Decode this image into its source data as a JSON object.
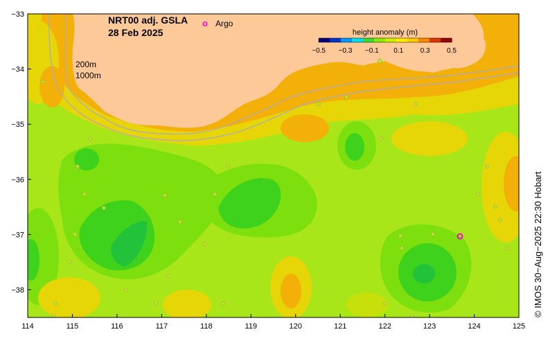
{
  "title": {
    "product": "NRT00 adj. GSLA",
    "date": "28 Feb 2025"
  },
  "legend": {
    "argo_symbol": "o",
    "argo_label": "Argo"
  },
  "colorbar": {
    "title": "height anomaly (m)",
    "ticks": [
      "−0.5",
      "−0.3",
      "−0.1",
      "0.1",
      "0.3",
      "0.5"
    ],
    "colors": [
      "#00007f",
      "#0033cc",
      "#0099ff",
      "#00ddee",
      "#33dd33",
      "#88ee00",
      "#ccee00",
      "#ffee00",
      "#ffcc00",
      "#ff8800",
      "#dd3300",
      "#990000"
    ]
  },
  "isobaths": [
    "200m",
    "1000m"
  ],
  "axes": {
    "x_ticks": [
      "114",
      "115",
      "116",
      "117",
      "118",
      "119",
      "120",
      "121",
      "122",
      "123",
      "124",
      "125"
    ],
    "y_ticks": [
      "−33",
      "−34",
      "−35",
      "−36",
      "−37",
      "−38"
    ]
  },
  "credit": "© IMOS 30−Aug−2025 22:30 Hobart",
  "colors": {
    "land": "#fdc998",
    "sea_base": "#a8e619",
    "isobath": "#a9a9c8"
  }
}
